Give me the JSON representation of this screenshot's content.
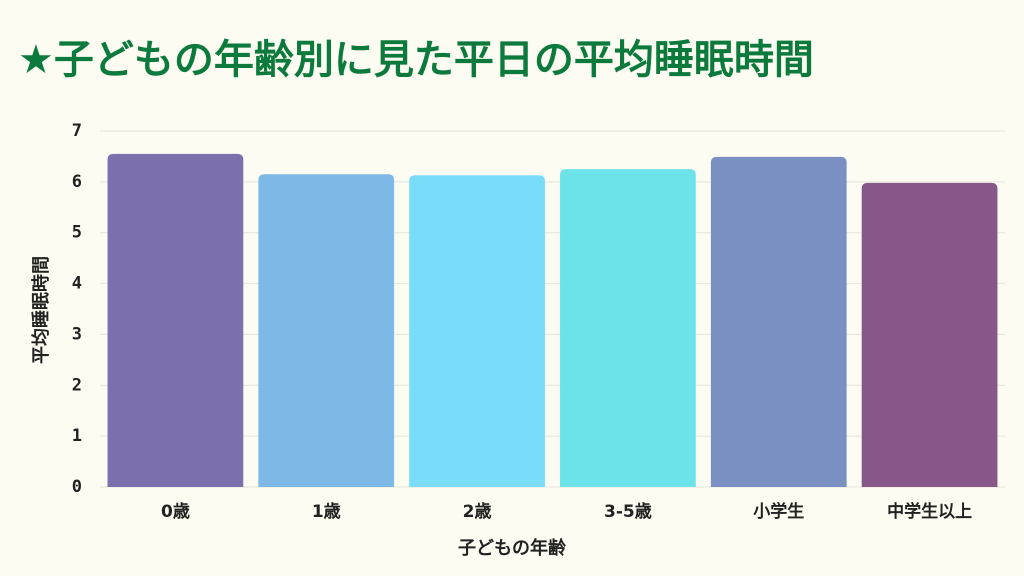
{
  "chart_data": {
    "type": "bar",
    "title": "★子どもの年齢別に見た平日の平均睡眠時間",
    "x_label": "子どもの年齢",
    "y_label": "平均睡眠時間",
    "categories": [
      "0歳",
      "1歳",
      "2歳",
      "3-5歳",
      "小学生",
      "中学生以上"
    ],
    "values": [
      6.55,
      6.15,
      6.13,
      6.25,
      6.49,
      5.98
    ],
    "colors": [
      "#7b70ad",
      "#7db8e6",
      "#79ddfa",
      "#6ce3e8",
      "#7b90c2",
      "#875787"
    ],
    "ylim": [
      0,
      7
    ],
    "yticks": [
      0,
      1,
      2,
      3,
      4,
      5,
      6,
      7
    ],
    "grid": true
  }
}
